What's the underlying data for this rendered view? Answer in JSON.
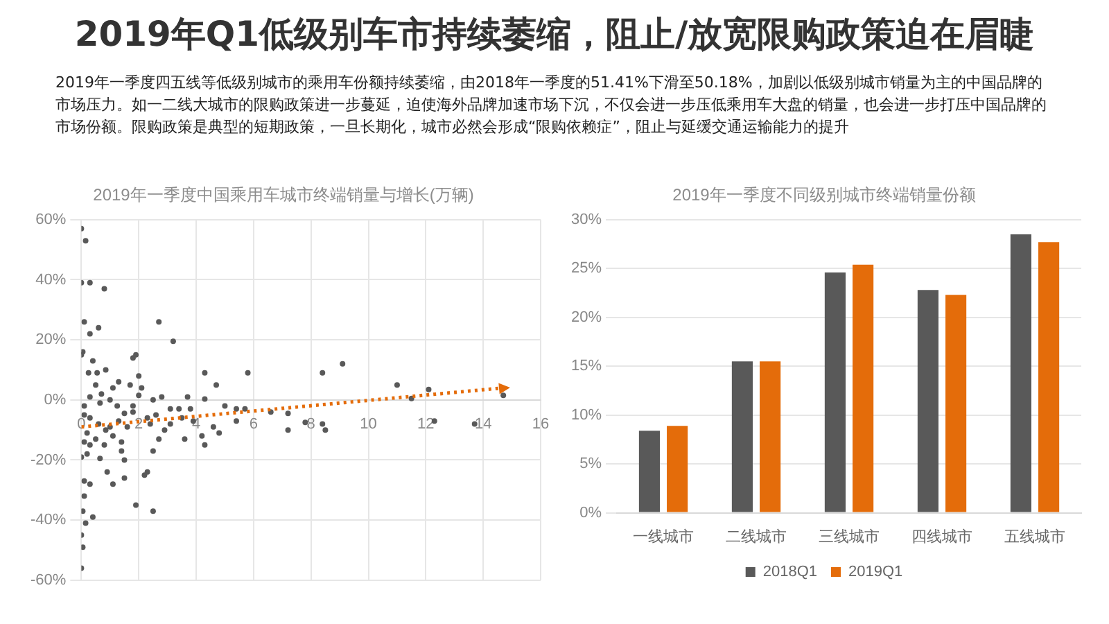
{
  "chart_data": [
    {
      "type": "other",
      "title": "2019年Q1低级别车市持续萎缩，阻止/放宽限购政策迫在眉睫",
      "annotations": [
        "2019年一季度四五线等低级别城市的乘用车份额持续萎缩，由2018年一季度的51.41%下滑至50.18%，加剧以低级别城市销量为主的中国品牌的市场压力。如一二线大城市的限购政策进一步蔓延，迫使海外品牌加速市场下沉，不仅会进一步压低乘用车大盘的销量，也会进一步打压中国品牌的市场份额。限购政策是典型的短期政策，一旦长期化，城市必然会形成“限购依赖症”，阻止与延缓交通运输能力的提升"
      ]
    },
    {
      "type": "scatter",
      "title": "2019年一季度中国乘用车城市终端销量与增长(万辆)",
      "xlim": [
        0,
        16
      ],
      "xticks": [
        0,
        2,
        4,
        6,
        8,
        10,
        12,
        14,
        16
      ],
      "ylim": [
        -60,
        60
      ],
      "yticks": [
        {
          "value": -60,
          "label": "-60%"
        },
        {
          "value": -40,
          "label": "-40%"
        },
        {
          "value": -20,
          "label": "-20%"
        },
        {
          "value": 0,
          "label": "0%"
        },
        {
          "value": 20,
          "label": "20%"
        },
        {
          "value": 40,
          "label": "40%"
        },
        {
          "value": 60,
          "label": "60%"
        }
      ],
      "grid": true,
      "series": [
        {
          "color": "#595959",
          "marker": "circle",
          "x": [
            0,
            0.15,
            0,
            0.3,
            0.8,
            0.1,
            0.6,
            0.3,
            2.7,
            3.2,
            0.05,
            0,
            0.4,
            1.8,
            1.9,
            5.8,
            4.3,
            8.4,
            9.1,
            11,
            12.1,
            11.5,
            14.7,
            4.7,
            4.3,
            3.7,
            2.8,
            2.5,
            5,
            5.4,
            5.7,
            6.6,
            7.2,
            7.2,
            7.8,
            8.4,
            8.5,
            12.3,
            13.7,
            5.4,
            4.8,
            4.6,
            4.2,
            4.3,
            3.6,
            3.9,
            3.5,
            3.1,
            2.9,
            2.7,
            2.5,
            2.2,
            2.3,
            1.9,
            2.5,
            1.5,
            1.1,
            0.9,
            0.65,
            0.4,
            0.15,
            0,
            0.05,
            0,
            0.05,
            0.1,
            0.1,
            0.3,
            0,
            0.2,
            1.5,
            1.4,
            1.6,
            1.8,
            2,
            2.1,
            2,
            1.7,
            1.3,
            1.1,
            0.85,
            0.55,
            0.25,
            0.5,
            0.7,
            1,
            1.25,
            0.65,
            0.3,
            0.1,
            0.1,
            0.3,
            0.6,
            0.85,
            1.1,
            1.4,
            0.5,
            0.2,
            0.1,
            0.3,
            0.8,
            1,
            1.3,
            1.5,
            1.8,
            2.3,
            2.4,
            2.6,
            3.1,
            3.8,
            3.4
          ],
          "values": [
            57,
            53,
            39,
            39,
            37,
            26,
            24,
            22,
            26,
            19.5,
            16,
            15,
            13,
            14,
            15,
            9,
            9,
            9,
            12,
            5,
            3.5,
            0.5,
            1.5,
            5,
            0.3,
            1,
            1,
            0,
            -2,
            -3,
            -3,
            -4,
            -4.5,
            -10,
            -7.5,
            -8,
            -10,
            -7,
            -8,
            -7,
            -11,
            -9,
            -12,
            -15,
            -13,
            -7,
            -6,
            -8,
            -10,
            -13,
            -17,
            -25,
            -24,
            -35,
            -37,
            -26,
            -28,
            -24,
            -19.5,
            -39,
            -41,
            -45,
            -49,
            -56,
            -37,
            -32,
            -27,
            -28,
            -19,
            -18,
            -20,
            -17,
            -9,
            -4,
            1.5,
            4,
            8,
            5,
            6,
            4,
            10,
            9,
            9,
            5,
            2,
            0,
            -2,
            -1,
            1,
            -2,
            -5,
            -6,
            -8,
            -10,
            -12,
            -14,
            -13,
            -11,
            -14,
            -15,
            -15,
            -9,
            -7,
            -4.5,
            -2,
            -6,
            -8,
            -5,
            -3,
            -3,
            -3
          ]
        },
        {
          "type": "line",
          "color": "#e46c0a",
          "line_style": "dotted",
          "x": [
            0,
            14.7
          ],
          "values": [
            -9,
            4
          ]
        }
      ]
    },
    {
      "type": "bar",
      "title": "2019年一季度不同级别城市终端销量份额",
      "categories": [
        "一线城市",
        "二线城市",
        "三线城市",
        "四线城市",
        "五线城市"
      ],
      "ylim": [
        0,
        30
      ],
      "yticks": [
        {
          "value": 0,
          "label": "0%"
        },
        {
          "value": 5,
          "label": "5%"
        },
        {
          "value": 10,
          "label": "10%"
        },
        {
          "value": 15,
          "label": "15%"
        },
        {
          "value": 20,
          "label": "20%"
        },
        {
          "value": 25,
          "label": "25%"
        },
        {
          "value": 30,
          "label": "30%"
        }
      ],
      "grid": "y",
      "legend": "bottom",
      "series": [
        {
          "name": "2018Q1",
          "color": "#595959",
          "values": [
            8.4,
            15.5,
            24.6,
            22.8,
            28.5
          ]
        },
        {
          "name": "2019Q1",
          "color": "#e46c0a",
          "values": [
            8.9,
            15.5,
            25.4,
            22.3,
            27.7
          ]
        }
      ]
    }
  ]
}
